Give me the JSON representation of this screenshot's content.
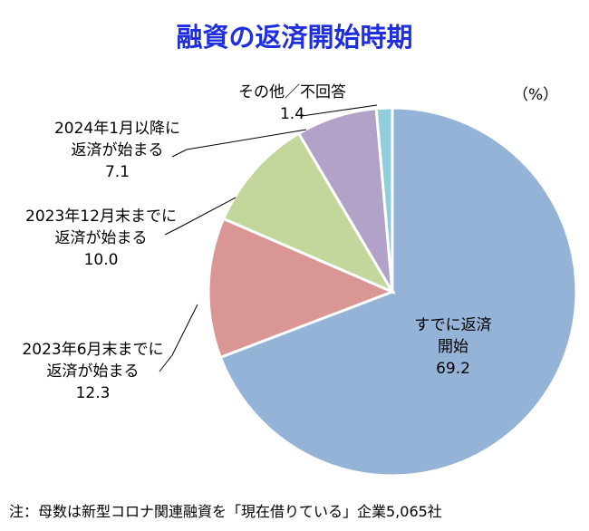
{
  "chart_data": {
    "type": "pie",
    "title": "融資の返済開始時期",
    "unit": "（%）",
    "note": "注：母数は新型コロナ関連融資を「現在借りている」企業5,065社",
    "slices": [
      {
        "line1": "すでに返済",
        "line2": "開始",
        "value_label": "69.2",
        "value": 69.2,
        "color": "#95b3d7"
      },
      {
        "line1": "2023年6月末までに",
        "line2": "返済が始まる",
        "value_label": "12.3",
        "value": 12.3,
        "color": "#d99694"
      },
      {
        "line1": "2023年12月末までに",
        "line2": "返済が始まる",
        "value_label": "10.0",
        "value": 10.0,
        "color": "#c3d69b"
      },
      {
        "line1": "2024年1月以降に",
        "line2": "返済が始まる",
        "value_label": "7.1",
        "value": 7.1,
        "color": "#b2a2c7"
      },
      {
        "line1": "その他／不回答",
        "line2": "",
        "value_label": "1.4",
        "value": 1.4,
        "color": "#92cddc"
      }
    ]
  }
}
